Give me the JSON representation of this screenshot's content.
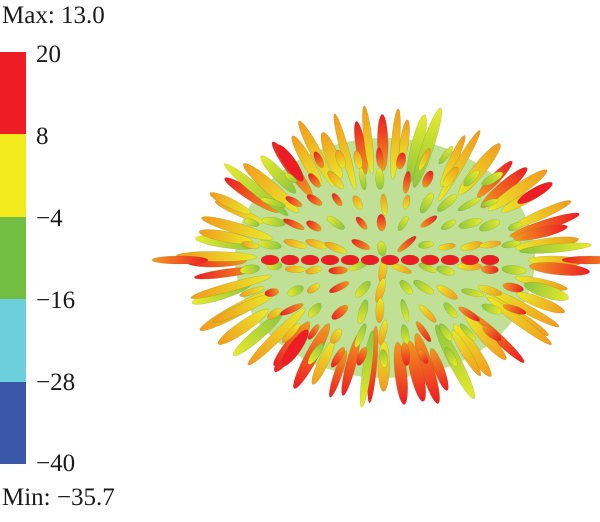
{
  "max_label": "Max: 13.0",
  "min_label": "Min: −35.7",
  "colorbar": {
    "ticks": [
      "20",
      "8",
      "−4",
      "−16",
      "−28",
      "−40"
    ],
    "bands": [
      {
        "name": "band-20-8",
        "color": "#ee1c25"
      },
      {
        "name": "band-8-neg4",
        "color": "#f3ea1d"
      },
      {
        "name": "band-neg4-neg16",
        "color": "#72bd42"
      },
      {
        "name": "band-neg16-neg28",
        "color": "#6ccfdc"
      },
      {
        "name": "band-neg28-neg40",
        "color": "#3a56a6"
      }
    ]
  },
  "colors": {
    "lobe_high": "#ee1c25",
    "lobe_mid": "#f39a1d",
    "lobe_yellow": "#e9ea2a",
    "lobe_green": "#8cc63f"
  }
}
